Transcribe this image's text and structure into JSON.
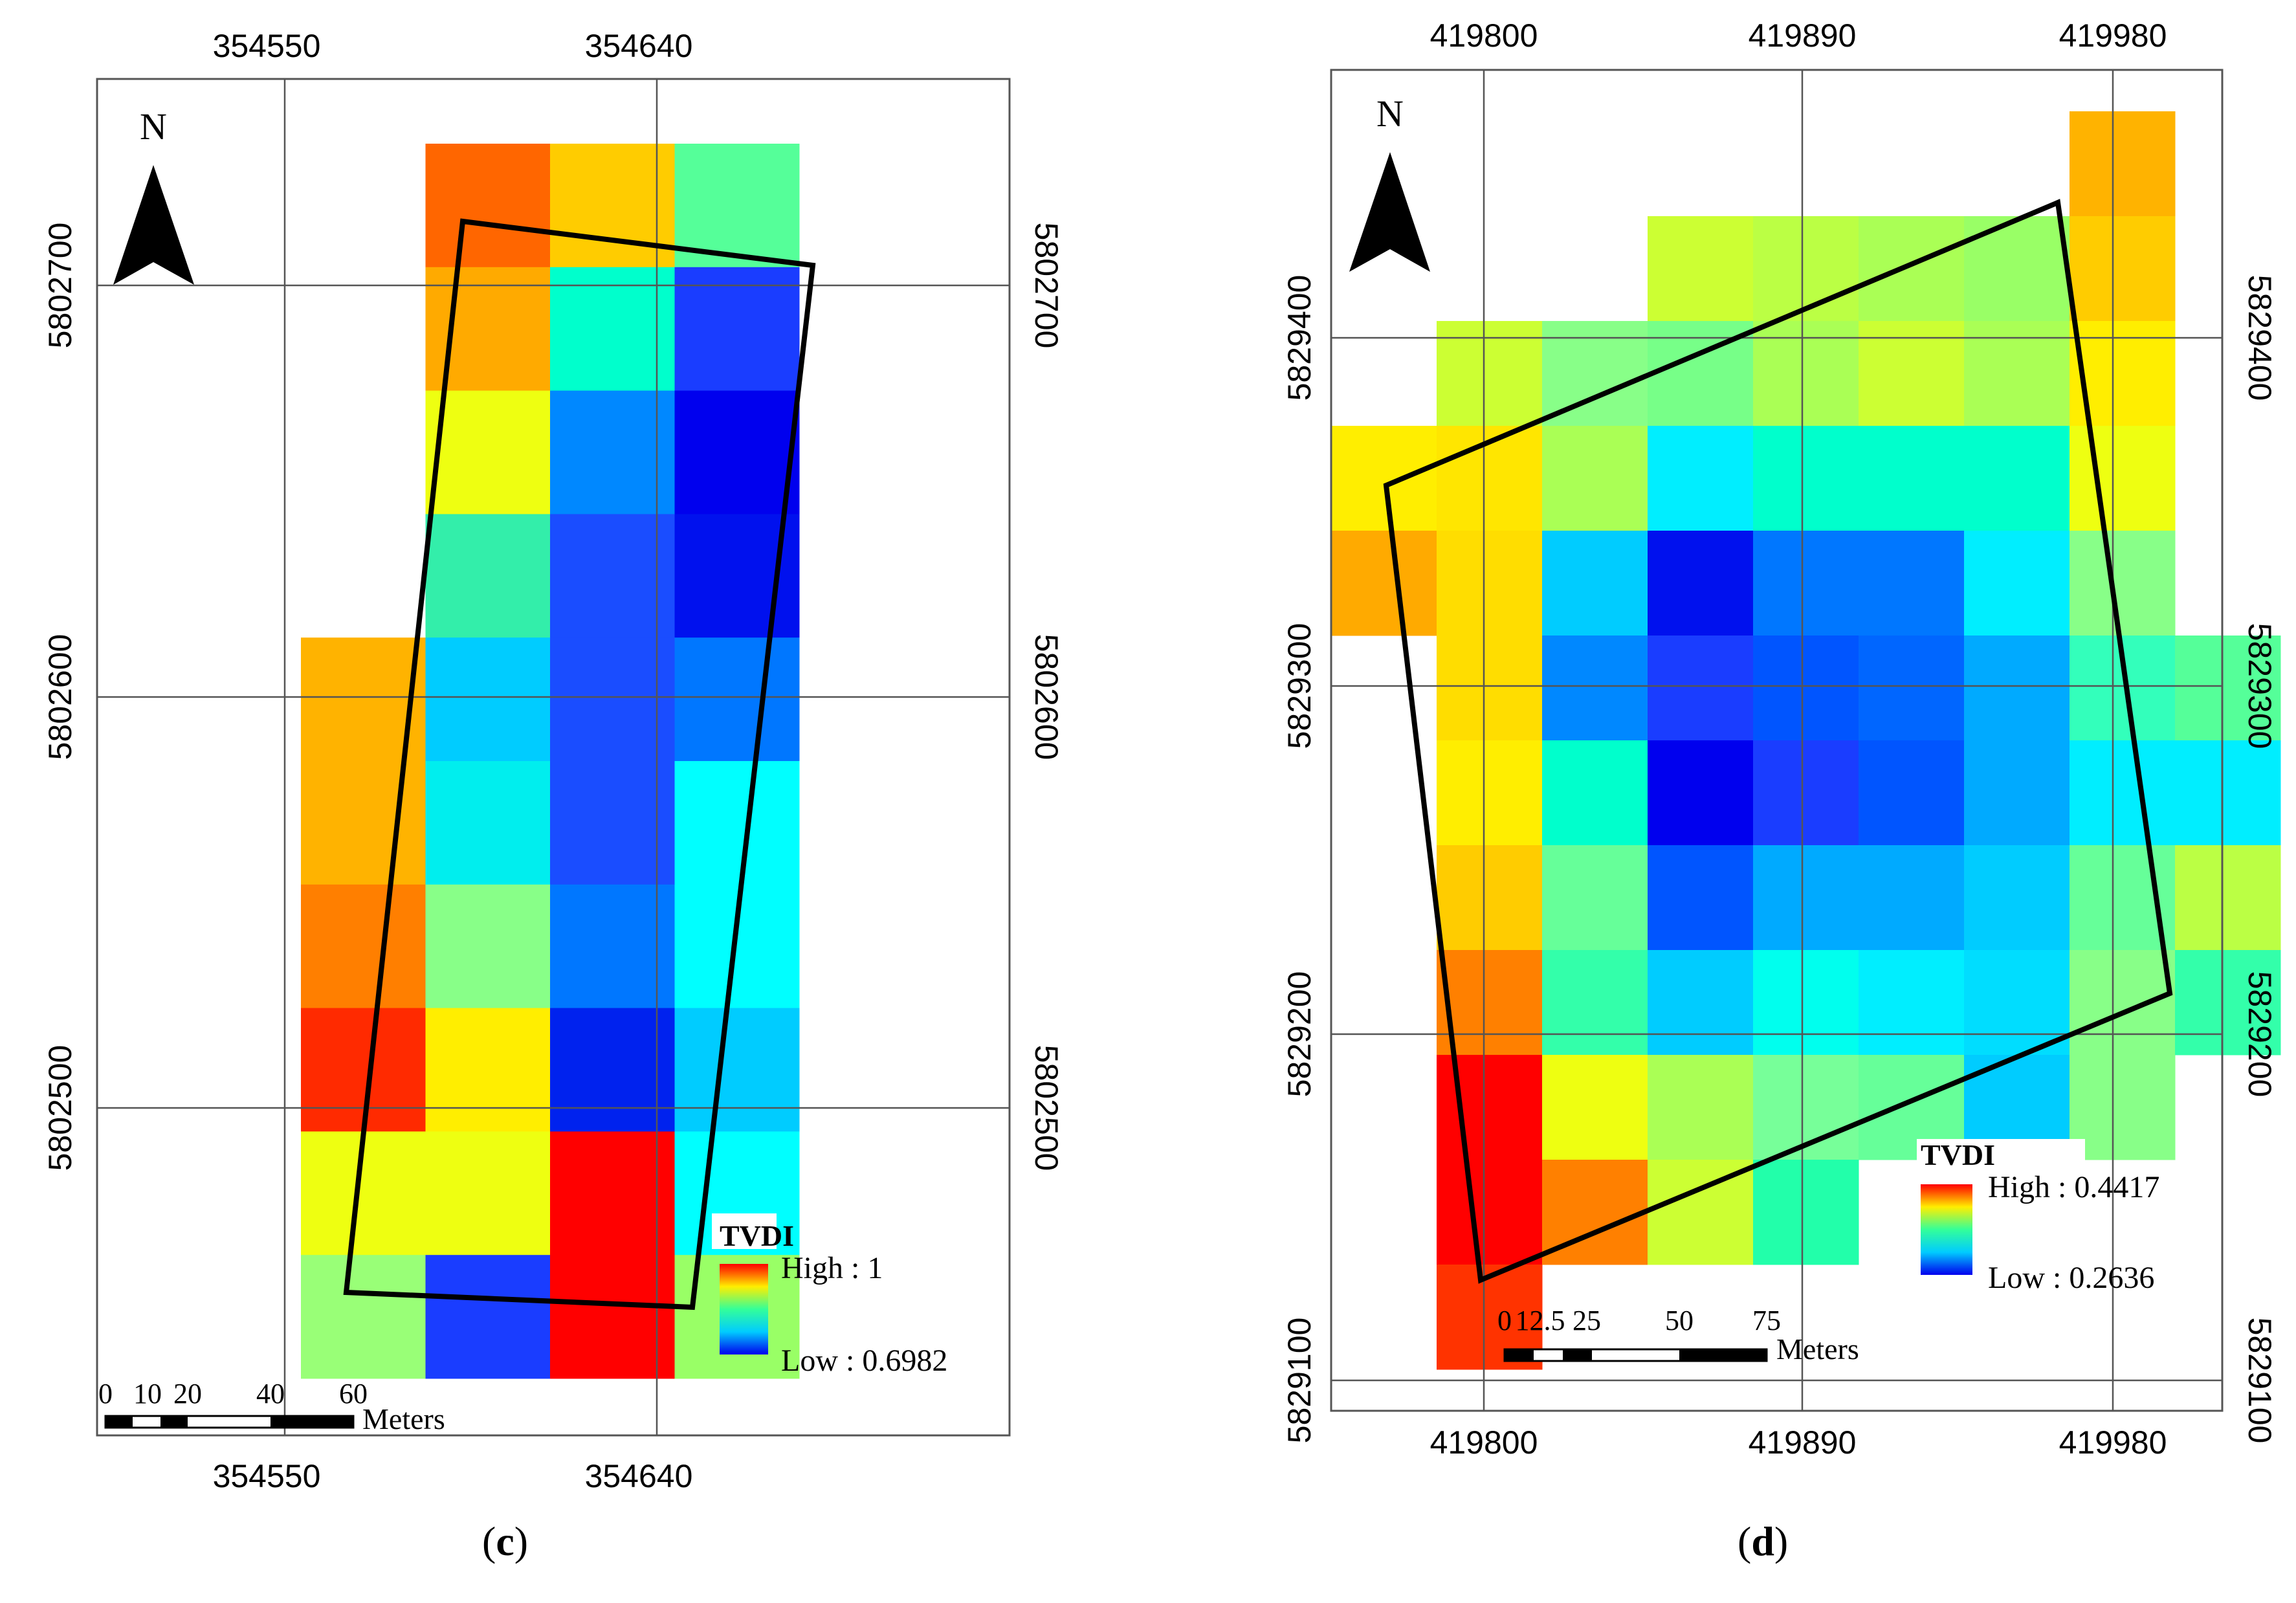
{
  "panel_c": {
    "caption_letter": "c",
    "x_ticks": [
      "354550",
      "354640"
    ],
    "y_ticks": [
      "5802700",
      "5802600",
      "5802500"
    ],
    "north_label": "N",
    "legend": {
      "title": "TVDI",
      "high": "High : 1",
      "low": "Low : 0.6982"
    },
    "scale": {
      "labels": [
        "0",
        "10",
        "20",
        "40",
        "60"
      ],
      "unit": "Meters"
    },
    "grid": [
      [
        null,
        "#FF6600",
        "#FFCC00",
        "#55FF99"
      ],
      [
        null,
        "#FFAA00",
        "#00FFCC",
        "#1A3DFF"
      ],
      [
        null,
        "#EEFF11",
        "#0088FF",
        "#0000EE"
      ],
      [
        null,
        "#33EEAA",
        "#1A4DFF",
        "#0011EE"
      ],
      [
        "#FFB300",
        "#00CCFF",
        "#1A4DFF",
        "#0077FF"
      ],
      [
        "#FFB300",
        "#00EEEE",
        "#1A4DFF",
        "#00FFFF"
      ],
      [
        "#FF7F00",
        "#88FF88",
        "#0077FF",
        "#00FFFF"
      ],
      [
        "#FF2A00",
        "#FFEE00",
        "#0022EE",
        "#00CCFF"
      ],
      [
        "#EEFF11",
        "#EEFF11",
        "#FF0000",
        "#00FFFF"
      ],
      [
        "#99FF77",
        "#1A3DFF",
        "#FF0000",
        "#99FF66"
      ]
    ]
  },
  "panel_d": {
    "caption_letter": "d",
    "x_ticks": [
      "419800",
      "419890",
      "419980"
    ],
    "y_ticks": [
      "5829400",
      "5829300",
      "5829200",
      "5829100"
    ],
    "north_label": "N",
    "legend": {
      "title": "TVDI",
      "high": "High : 0.4417",
      "low": "Low : 0.2636"
    },
    "scale": {
      "labels": [
        "0",
        "12.5",
        "25",
        "50",
        "75"
      ],
      "unit": "Meters"
    },
    "grid": [
      [
        null,
        null,
        null,
        null,
        null,
        null,
        null,
        "#FFB300"
      ],
      [
        null,
        null,
        null,
        "#CCFF33",
        "#BBFF44",
        "#AAFF55",
        "#99FF66",
        "#FFCC00"
      ],
      [
        null,
        "#CCFF33",
        "#88FF88",
        "#77FF88",
        "#AAFF55",
        "#CCFF33",
        "#AAFF55",
        "#FFEE00"
      ],
      [
        "#FFEE00",
        "#FFE600",
        "#AAFF55",
        "#00EEFF",
        "#00FFCC",
        "#00FFCC",
        "#00FFCC",
        "#EEFF11"
      ],
      [
        "#FFAA00",
        "#FFDD00",
        "#00CCFF",
        "#0011EE",
        "#0077FF",
        "#0077FF",
        "#00EEFF",
        "#88FF88"
      ],
      [
        null,
        "#FFDD00",
        "#0088FF",
        "#1A3DFF",
        "#0055FF",
        "#0066FF",
        "#00AAFF",
        "#33FFBB",
        "#55FF99"
      ],
      [
        null,
        "#FFEE00",
        "#00FFCC",
        "#0000EE",
        "#1A3DFF",
        "#0055FF",
        "#00AAFF",
        "#00EEFF",
        "#00EEFF"
      ],
      [
        null,
        "#FFCC00",
        "#66FF99",
        "#0055FF",
        "#00AAFF",
        "#00AAFF",
        "#00CCFF",
        "#66FF99",
        "#BBFF44"
      ],
      [
        null,
        "#FF8000",
        "#33FFAA",
        "#00CCFF",
        "#00FFEE",
        "#00EEFF",
        "#00DDFF",
        "#88FF88",
        "#33FFAA"
      ],
      [
        null,
        "#FF0000",
        "#EEFF11",
        "#AAFF55",
        "#77FF99",
        "#66FF99",
        "#00CCFF",
        "#88FF88",
        null
      ],
      [
        null,
        "#FF0000",
        "#FF8000",
        "#CCFF33",
        "#22FFAA",
        null,
        null,
        null,
        null
      ],
      [
        null,
        "#FF3300",
        null,
        null,
        null,
        null,
        null,
        null,
        null
      ]
    ]
  }
}
